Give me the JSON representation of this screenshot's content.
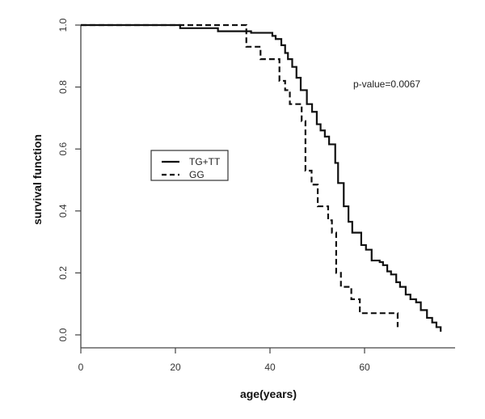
{
  "chart_data": {
    "type": "line",
    "subtype": "kaplan-meier step",
    "title": "",
    "xlabel": "age(years)",
    "ylabel": "survival function",
    "xlim": [
      0,
      79
    ],
    "ylim": [
      -0.04,
      1.02
    ],
    "xticks": [
      0,
      20,
      40,
      60
    ],
    "yticks": [
      0.0,
      0.2,
      0.4,
      0.6,
      0.8,
      1.0
    ],
    "xtick_labels": [
      "0",
      "20",
      "40",
      "60"
    ],
    "ytick_labels": [
      "0.0",
      "0.2",
      "0.4",
      "0.6",
      "0.8",
      "1.0"
    ],
    "grid": false,
    "legend_position": "center-left (inside plot)",
    "annotation": "p-value=0.0067",
    "series": [
      {
        "name": "TG+TT",
        "style": "solid",
        "x": [
          0,
          21,
          29,
          36,
          40.5,
          41.2,
          42.4,
          43.2,
          43.8,
          44.7,
          45.6,
          46.5,
          47.8,
          48.9,
          49.9,
          50.7,
          51.6,
          52.5,
          53.8,
          54.4,
          55.6,
          56.6,
          57.4,
          59.3,
          60.3,
          61.5,
          63.2,
          63.9,
          64.8,
          65.6,
          66.7,
          67.5,
          68.7,
          69.7,
          70.9,
          71.9,
          73.2,
          74.3,
          75.2,
          76.1
        ],
        "y": [
          1.0,
          0.99,
          0.98,
          0.975,
          0.965,
          0.955,
          0.935,
          0.91,
          0.89,
          0.865,
          0.83,
          0.79,
          0.745,
          0.72,
          0.68,
          0.66,
          0.64,
          0.615,
          0.555,
          0.49,
          0.415,
          0.365,
          0.33,
          0.29,
          0.275,
          0.24,
          0.235,
          0.225,
          0.205,
          0.195,
          0.17,
          0.155,
          0.13,
          0.115,
          0.105,
          0.08,
          0.055,
          0.04,
          0.025,
          0.01
        ]
      },
      {
        "name": "GG",
        "style": "dashed",
        "x": [
          0,
          35,
          38,
          42,
          43.2,
          44.2,
          46.7,
          47.5,
          48.8,
          50.1,
          52.3,
          53.1,
          54.0,
          55.0,
          57.2,
          59.0,
          61.9,
          67.0
        ],
        "y": [
          1.0,
          0.93,
          0.89,
          0.82,
          0.79,
          0.745,
          0.69,
          0.53,
          0.485,
          0.415,
          0.37,
          0.33,
          0.2,
          0.155,
          0.115,
          0.07,
          0.07,
          0.025
        ]
      }
    ]
  },
  "legend": {
    "items": [
      {
        "label": "TG+TT",
        "style": "solid"
      },
      {
        "label": "GG",
        "style": "dashed"
      }
    ]
  },
  "annotation": {
    "text": "p-value=0.0067"
  },
  "axes": {
    "xlabel": "age(years)",
    "ylabel": "survival function"
  }
}
